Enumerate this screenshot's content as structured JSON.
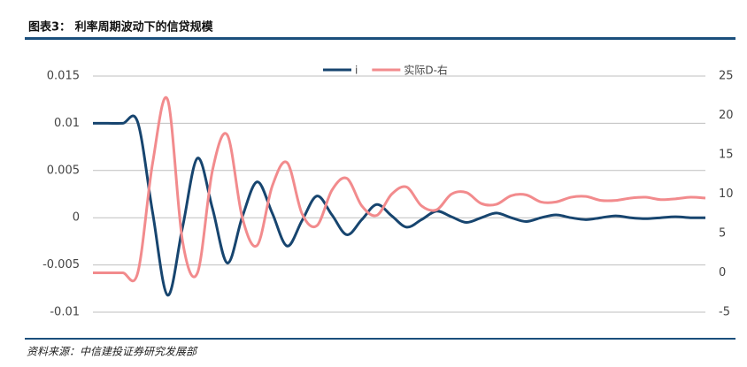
{
  "chart_data": {
    "type": "line",
    "title": "图表3： 利率周期波动下的信贷规模",
    "source": "资料来源：中信建投证券研究发展部",
    "ylim": [
      -0.01,
      0.015
    ],
    "yticks": [
      {
        "value": 0.015,
        "label": "0.015"
      },
      {
        "value": 0.01,
        "label": "0.01"
      },
      {
        "value": 0.005,
        "label": "0.005"
      },
      0,
      {
        "value": -0.005,
        "label": "-0.005"
      },
      {
        "value": -0.01,
        "label": "-0.01"
      }
    ],
    "y2lim": [
      -5,
      25
    ],
    "y2ticks": [
      25,
      20,
      15,
      10,
      5,
      0,
      -5
    ],
    "grid": true,
    "legend": "top",
    "series": [
      {
        "name": "i",
        "color": "#17456f",
        "values": [
          0.01,
          0.01,
          0.01,
          0.0101,
          0.0005,
          -0.0082,
          -0.001,
          0.0063,
          0.001,
          -0.0048,
          0.0001,
          0.0038,
          0.0005,
          -0.003,
          -0.0003,
          0.0023,
          0.0003,
          -0.0018,
          -0.0002,
          0.0014,
          0.0002,
          -0.001,
          -0.0002,
          0.0007,
          0.0001,
          -0.0005,
          0,
          0.0005,
          0,
          -0.0004,
          0,
          0.0003,
          0,
          -0.0002,
          0,
          0.0002,
          0,
          -0.0001,
          0,
          0.0001,
          0,
          0
        ]
      },
      {
        "name": "实际D-右",
        "color": "#f28b8d",
        "axis": "y2",
        "values": [
          0,
          0,
          0,
          0,
          14,
          22,
          4,
          0,
          13,
          17.5,
          7,
          3.5,
          11,
          14,
          7.5,
          6,
          10.5,
          12,
          8.5,
          7.3,
          10,
          10.9,
          8.5,
          8,
          10,
          10.2,
          8.8,
          8.7,
          9.8,
          9.9,
          9,
          9,
          9.6,
          9.7,
          9.2,
          9.2,
          9.5,
          9.6,
          9.3,
          9.4,
          9.6,
          9.5
        ]
      }
    ]
  }
}
